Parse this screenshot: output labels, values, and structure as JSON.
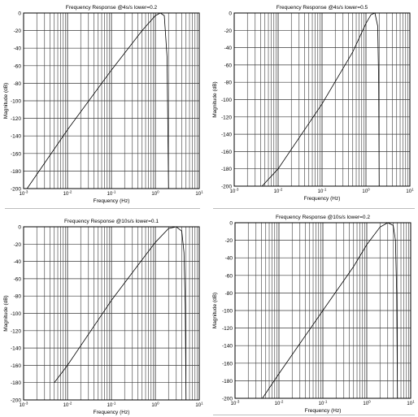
{
  "chart_data": [
    {
      "type": "line",
      "title": "Frequency Response @4s/s lower=0.2",
      "xlabel": "Frequency (Hz)",
      "ylabel": "Magnitude (dB)",
      "xscale": "log",
      "xlim": [
        0.001,
        10
      ],
      "ylim": [
        -200,
        0
      ],
      "grid": true,
      "xticks": [
        0.001,
        0.01,
        0.1,
        1,
        10
      ],
      "yticks": [
        0,
        -20,
        -40,
        -60,
        -80,
        -100,
        -120,
        -140,
        -160,
        -180,
        -200
      ],
      "series": [
        {
          "x": [
            0.0012,
            0.01,
            0.1,
            0.5,
            1.0,
            1.3,
            1.6,
            1.85,
            1.95,
            2.0
          ],
          "y": [
            -200,
            -133,
            -65,
            -20,
            -3,
            0,
            -3,
            -50,
            -150,
            -200
          ]
        }
      ]
    },
    {
      "type": "line",
      "title": "Frequency Response @4s/s lower=0.5",
      "xlabel": "Frequency (Hz)",
      "ylabel": "Magnitude (dB)",
      "xscale": "log",
      "xlim": [
        0.001,
        10
      ],
      "ylim": [
        -200,
        0
      ],
      "grid": true,
      "xticks": [
        0.001,
        0.01,
        0.1,
        1,
        10
      ],
      "yticks": [
        0,
        -20,
        -40,
        -60,
        -80,
        -100,
        -120,
        -140,
        -160,
        -180,
        -200
      ],
      "series": [
        {
          "x": [
            0.0043,
            0.01,
            0.1,
            0.5,
            1.0,
            1.3,
            1.6,
            1.85,
            1.95,
            2.0
          ],
          "y": [
            -200,
            -180,
            -105,
            -45,
            -12,
            -2,
            0,
            -15,
            -80,
            -200
          ]
        }
      ]
    },
    {
      "type": "line",
      "title": "Frequency Response @10s/s lower=0.1",
      "xlabel": "Frequency (Hz)",
      "ylabel": "Magnitude (dB)",
      "xscale": "log",
      "xlim": [
        0.001,
        10
      ],
      "ylim": [
        -200,
        0
      ],
      "grid": true,
      "xticks": [
        0.001,
        0.01,
        0.1,
        1,
        10
      ],
      "yticks": [
        0,
        -20,
        -40,
        -60,
        -80,
        -100,
        -120,
        -140,
        -160,
        -180,
        -200
      ],
      "series": [
        {
          "x": [
            0.005,
            0.01,
            0.1,
            0.5,
            1.0,
            2.0,
            3.0,
            4.0,
            4.5,
            4.8,
            5.0
          ],
          "y": [
            -180,
            -160,
            -85,
            -38,
            -18,
            -2,
            0,
            -5,
            -30,
            -90,
            -200
          ]
        }
      ]
    },
    {
      "type": "line",
      "title": "Frequency Response @10s/s lower=0.2",
      "xlabel": "Frequency (Hz)",
      "ylabel": "Magnitude (dB)",
      "xscale": "log",
      "xlim": [
        0.001,
        10
      ],
      "ylim": [
        -200,
        0
      ],
      "grid": true,
      "xticks": [
        0.001,
        0.01,
        0.1,
        1,
        10
      ],
      "yticks": [
        0,
        -20,
        -40,
        -60,
        -80,
        -100,
        -120,
        -140,
        -160,
        -180,
        -200
      ],
      "series": [
        {
          "x": [
            0.0042,
            0.01,
            0.1,
            0.5,
            1.0,
            2.0,
            3.0,
            4.0,
            4.5,
            4.8,
            5.0
          ],
          "y": [
            -200,
            -172,
            -100,
            -50,
            -25,
            -5,
            0,
            -3,
            -20,
            -80,
            -200
          ]
        }
      ]
    }
  ]
}
